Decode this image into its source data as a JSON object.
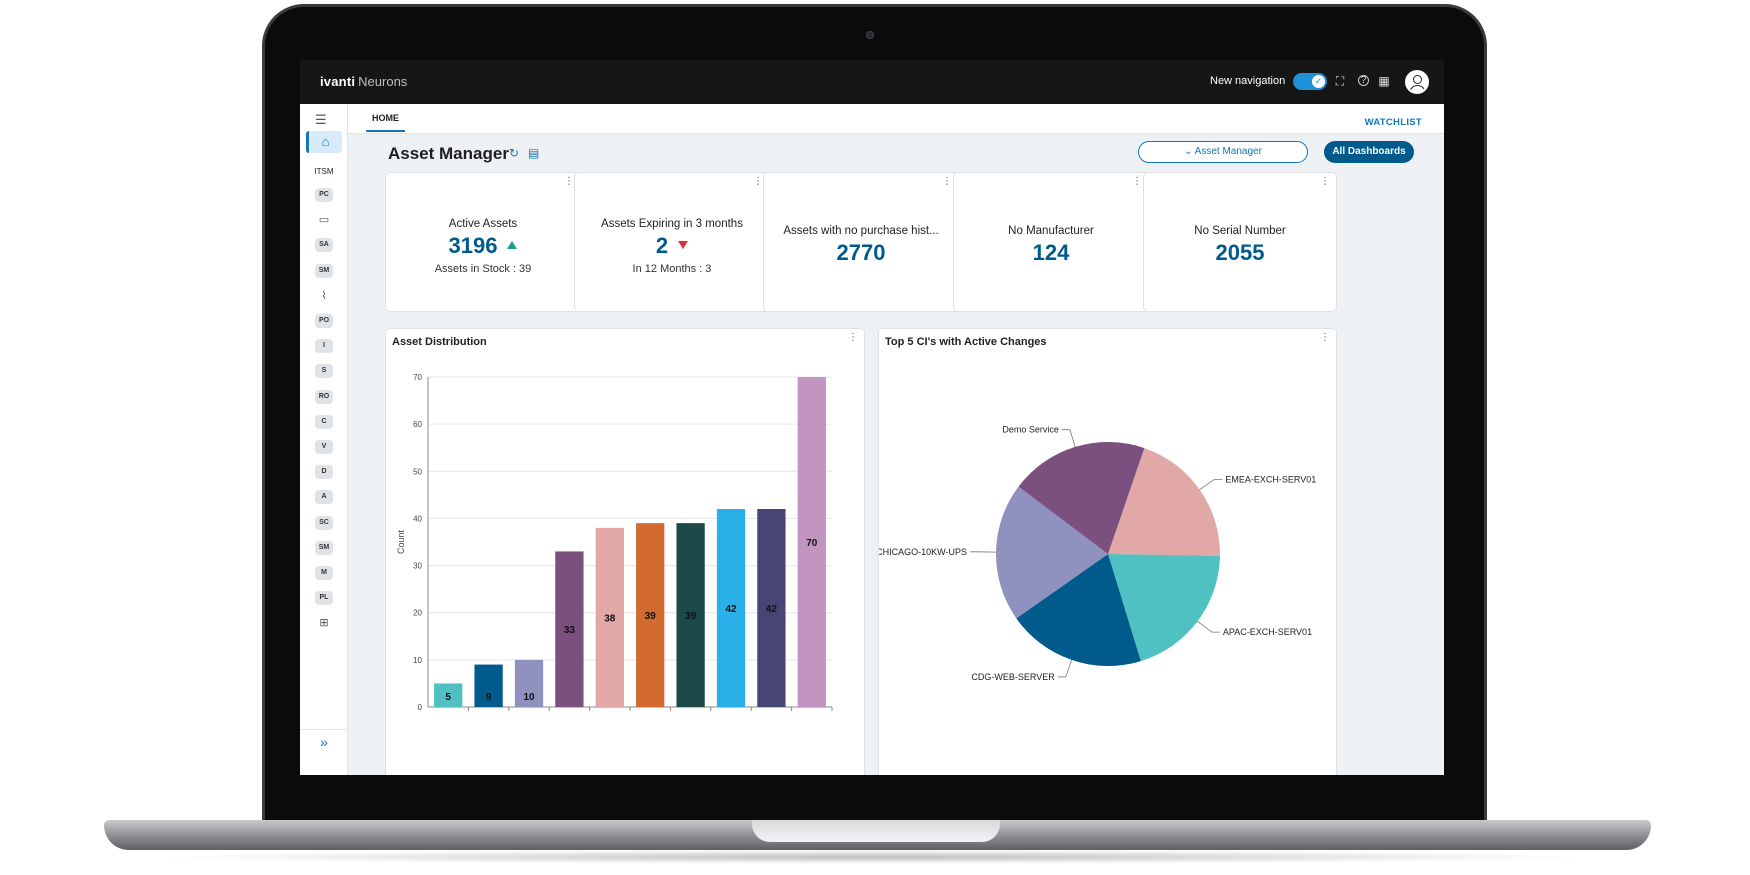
{
  "app": {
    "brand_bold": "ivanti",
    "brand_light": "Neurons"
  },
  "topbar": {
    "new_navigation_label": "New navigation",
    "toggle_on": true
  },
  "sidebar": {
    "section_label": "ITSM",
    "chips": [
      "PC",
      "SA",
      "SM",
      "PO",
      "I",
      "S",
      "RO",
      "C",
      "V",
      "D",
      "A",
      "SC",
      "SM",
      "M",
      "PL"
    ]
  },
  "tabs": {
    "home": "HOME",
    "watchlist": "WATCHLIST"
  },
  "page": {
    "title": "Asset Manager",
    "dropdown_label": "Asset Manager",
    "all_dashboards": "All Dashboards"
  },
  "kpis": [
    {
      "label": "Active Assets",
      "value": "3196",
      "trend": "up",
      "sub": "Assets in Stock : 39"
    },
    {
      "label": "Assets Expiring in 3 months",
      "value": "2",
      "trend": "down",
      "sub": "In 12 Months : 3"
    },
    {
      "label": "Assets with no purchase hist...",
      "value": "2770"
    },
    {
      "label": "No Manufacturer",
      "value": "124"
    },
    {
      "label": "No Serial Number",
      "value": "2055"
    }
  ],
  "panels": {
    "distribution_title": "Asset Distribution",
    "top5_title": "Top 5 CI's with Active Changes"
  },
  "chart_data": [
    {
      "type": "bar",
      "title": "Asset Distribution",
      "ylabel": "Count",
      "ylim": [
        0,
        70
      ],
      "yticks": [
        0,
        10,
        20,
        30,
        40,
        50,
        60,
        70
      ],
      "values": [
        5,
        9,
        10,
        33,
        38,
        39,
        39,
        42,
        42,
        70
      ],
      "colors": [
        "#4fc1c2",
        "#005a8c",
        "#8f91be",
        "#7b4f7e",
        "#e2a8a8",
        "#d36b30",
        "#1c4a48",
        "#2ab0e8",
        "#474574",
        "#c294c0"
      ]
    },
    {
      "type": "pie",
      "title": "Top 5 CI's with Active Changes",
      "slices": [
        {
          "label": "EMEA-EXCH-SERV01",
          "value": 20,
          "color": "#e2a8a8"
        },
        {
          "label": "APAC-EXCH-SERV01",
          "value": 20,
          "color": "#4fc1c2"
        },
        {
          "label": "CDG-WEB-SERVER",
          "value": 20,
          "color": "#005a8c"
        },
        {
          "label": "CHICAGO-10KW-UPS",
          "value": 20,
          "color": "#8f91be"
        },
        {
          "label": "Demo Service",
          "value": 20,
          "color": "#7b4f7e"
        }
      ]
    }
  ]
}
